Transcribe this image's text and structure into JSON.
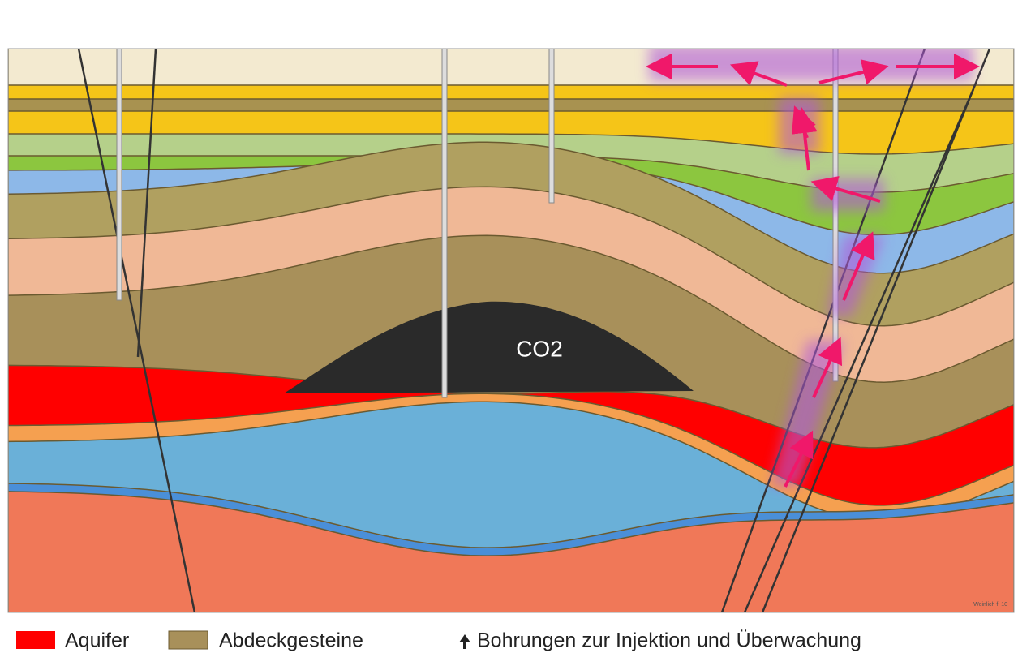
{
  "co2_label": "CO2",
  "legend": [
    "Aquifer",
    "Abdeckgesteine"
  ],
  "wells_legend": "Bohrungen zur Injektion und Überwachung",
  "credit": "Weinlich f. 10"
}
